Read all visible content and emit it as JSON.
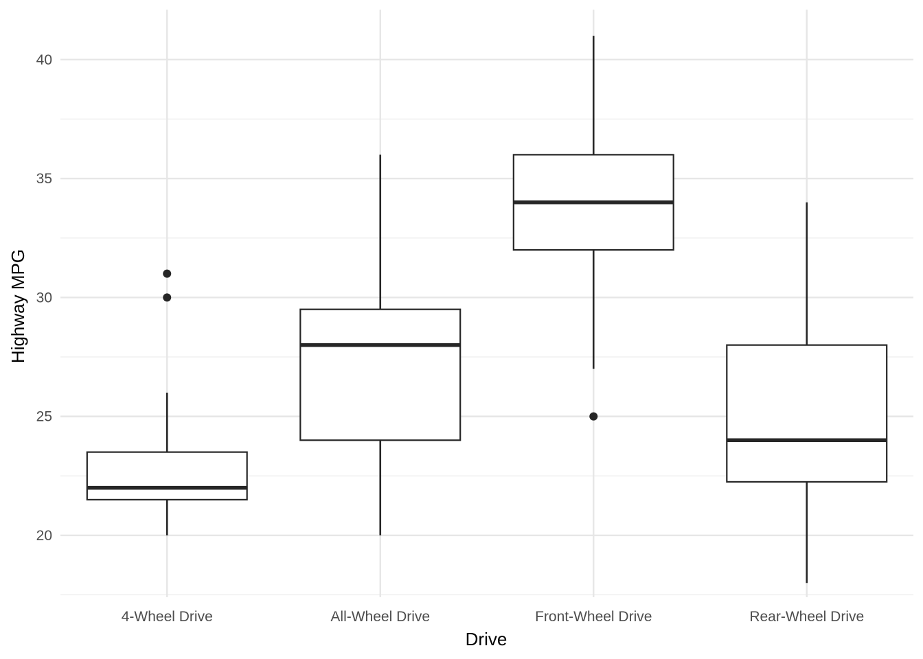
{
  "chart_data": {
    "type": "boxplot",
    "xlabel": "Drive",
    "ylabel": "Highway MPG",
    "ylim": [
      17.4,
      42.1
    ],
    "yticks": [
      20,
      25,
      30,
      35,
      40
    ],
    "grid": true,
    "legend": "none",
    "colors": {
      "box_stroke": "#262626",
      "box_fill": "#ffffff",
      "grid": "#e6e6e6"
    },
    "categories": [
      "4-Wheel Drive",
      "All-Wheel Drive",
      "Front-Wheel Drive",
      "Rear-Wheel Drive"
    ],
    "boxes": [
      {
        "category": "4-Wheel Drive",
        "lower_whisker": 20,
        "q1": 21.5,
        "median": 22,
        "q3": 23.5,
        "upper_whisker": 26,
        "outliers": [
          30,
          31
        ]
      },
      {
        "category": "All-Wheel Drive",
        "lower_whisker": 20,
        "q1": 24,
        "median": 28,
        "q3": 29.5,
        "upper_whisker": 36,
        "outliers": []
      },
      {
        "category": "Front-Wheel Drive",
        "lower_whisker": 27,
        "q1": 32,
        "median": 34,
        "q3": 36,
        "upper_whisker": 41,
        "outliers": [
          25
        ]
      },
      {
        "category": "Rear-Wheel Drive",
        "lower_whisker": 18,
        "q1": 22.25,
        "median": 24,
        "q3": 28,
        "upper_whisker": 34,
        "outliers": []
      }
    ]
  }
}
